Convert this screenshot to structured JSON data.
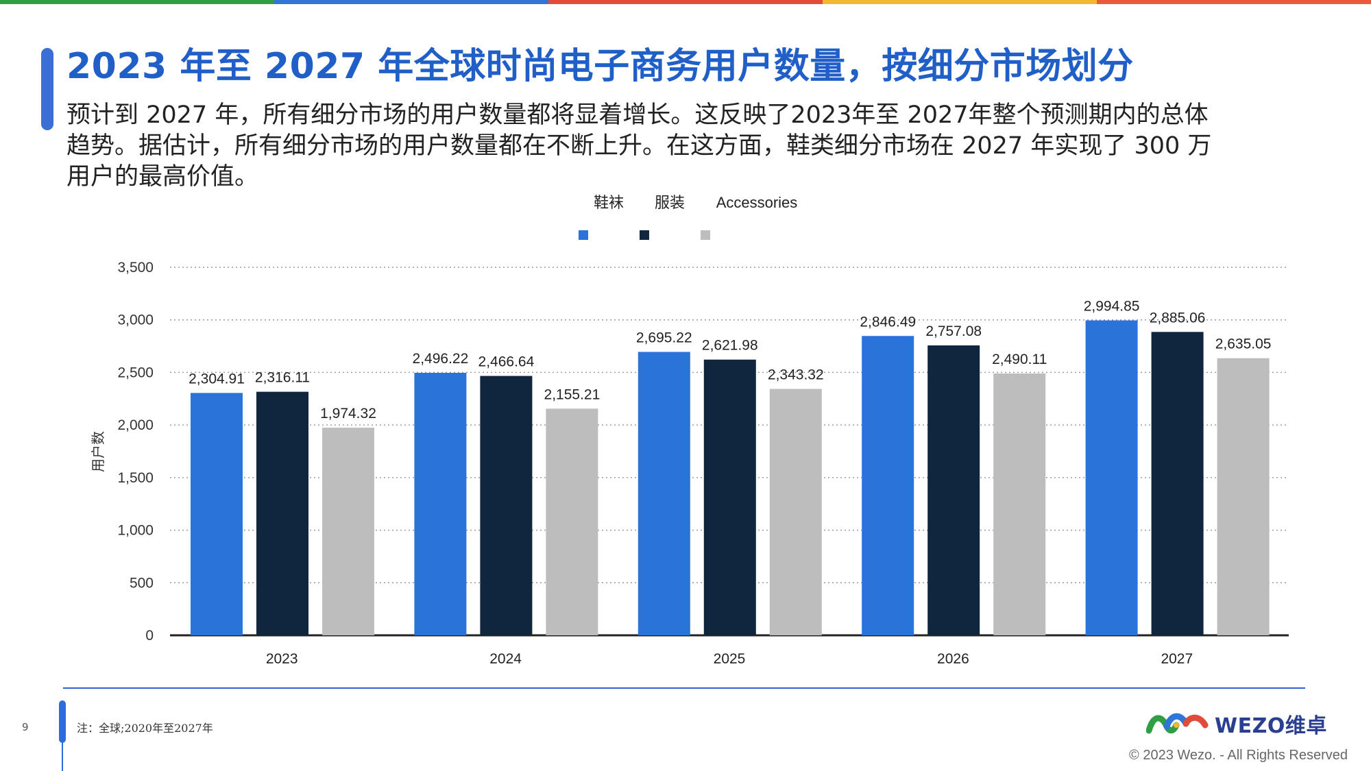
{
  "colors": {
    "top_bar": [
      "#2f9e44",
      "#2f76d6",
      "#e14b3a",
      "#f5b731",
      "#e85a3a"
    ],
    "title": "#1f5fc7",
    "accent": "#3b6fd6",
    "series_footwear": "#2a73d9",
    "series_apparel": "#10263e",
    "series_accessories": "#bdbdbd"
  },
  "header": {
    "title": "2023 年至 2027 年全球时尚电子商务用户数量，按细分市场划分",
    "description": "预计到 2027 年，所有细分市场的用户数量都将显着增长。这反映了2023年至 2027年整个预测期内的总体趋势。据估计，所有细分市场的用户数量都在不断上升。在这方面，鞋类细分市场在 2027 年实现了 300 万用户的最高价值。"
  },
  "chart_data": {
    "type": "bar",
    "categories": [
      "2023",
      "2024",
      "2025",
      "2026",
      "2027"
    ],
    "series": [
      {
        "name": "鞋袜",
        "values": [
          2304.91,
          2496.22,
          2695.22,
          2846.49,
          2994.85
        ],
        "labels": [
          "2,304.91",
          "2,496.22",
          "2,695.22",
          "2,846.49",
          "2,994.85"
        ]
      },
      {
        "name": "服装",
        "values": [
          2316.11,
          2466.64,
          2621.98,
          2757.08,
          2885.06
        ],
        "labels": [
          "2,316.11",
          "2,466.64",
          "2,621.98",
          "2,757.08",
          "2,885.06"
        ]
      },
      {
        "name": "Accessories",
        "values": [
          1974.32,
          2155.21,
          2343.32,
          2490.11,
          2635.05
        ],
        "labels": [
          "1,974.32",
          "2,155.21",
          "2,343.32",
          "2,490.11",
          "2,635.05"
        ]
      }
    ],
    "ylabel": "用户数",
    "xlabel": "",
    "ylim": [
      0,
      3500
    ],
    "yticks": [
      0,
      500,
      1000,
      1500,
      2000,
      2500,
      3000,
      3500
    ],
    "ytick_labels": [
      "0",
      "500",
      "1,000",
      "1,500",
      "2,000",
      "2,500",
      "3,000",
      "3,500"
    ],
    "grid": "dotted horizontal",
    "legend_position": "top-center"
  },
  "footer": {
    "page_number": "9",
    "note": "注：全球;2020年至2027年",
    "logo_text": "WEZO维卓",
    "copyright": "© 2023 Wezo. - All Rights Reserved"
  }
}
